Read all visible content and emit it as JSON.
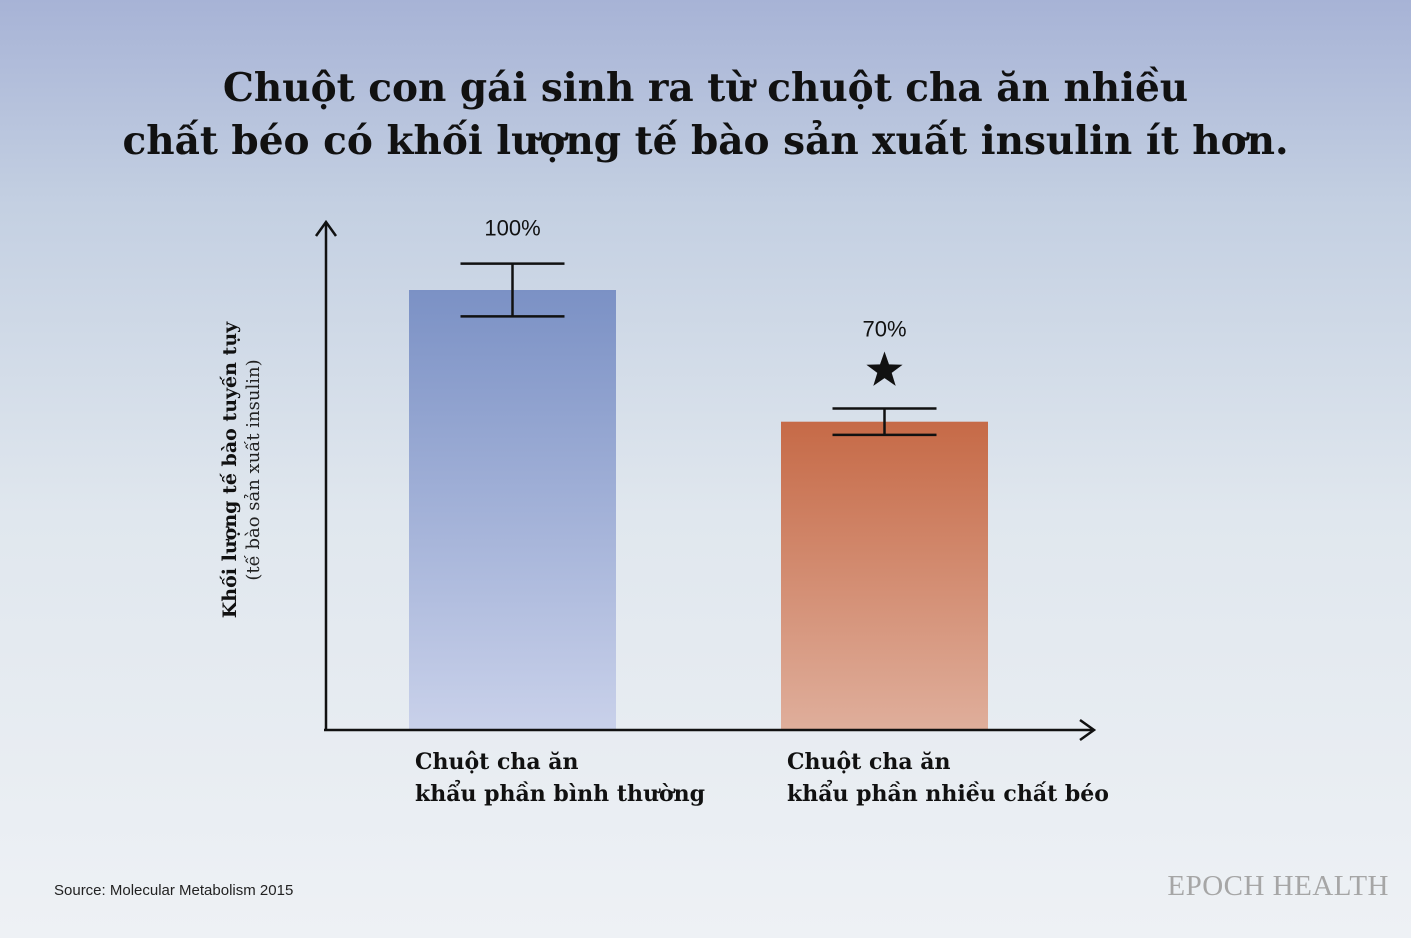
{
  "title": {
    "line1": "Chuột con gái sinh ra từ chuột cha ăn nhiều",
    "line2": "chất béo có khối lượng tế bào sản xuất insulin ít hơn."
  },
  "chart_data": {
    "type": "bar",
    "categories": [
      [
        "Chuột cha ăn",
        "khẩu phần bình thường"
      ],
      [
        "Chuột cha ăn",
        "khẩu phần nhiều chất béo"
      ]
    ],
    "values": [
      100,
      70
    ],
    "value_labels": [
      "100%",
      "70%"
    ],
    "error_bars": [
      [
        94,
        106
      ],
      [
        67,
        73
      ]
    ],
    "significance_marker": [
      false,
      true
    ],
    "bar_colors": [
      {
        "top": "#7b91c5",
        "bottom": "#c9d1ea"
      },
      {
        "top": "#c66a47",
        "bottom": "#dfae9b"
      }
    ],
    "ylabel": "Khối lượng tế bào tuyến tụy",
    "ylabel_sub": "(tế bào sản xuất insulin)",
    "xlabel": "",
    "ylim": [
      0,
      115
    ],
    "grid": false,
    "legend": "none"
  },
  "source": "Source: Molecular Metabolism 2015",
  "brand": "EPOCH HEALTH"
}
